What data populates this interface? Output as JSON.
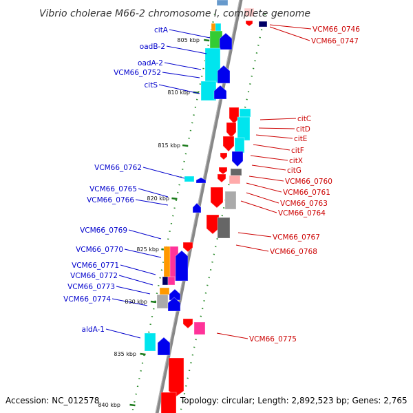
{
  "title": "Vibrio cholerae M66-2 chromosome I, complete genome",
  "footer": {
    "accession": "Accession: NC_012578",
    "topology": "Topology: circular; Length: 2,892,523 bp; Genes: 2,765"
  },
  "colors": {
    "left_label": "#0000cc",
    "right_label": "#cc0000",
    "backbone": "#888888",
    "dots": "#2a8a2a",
    "red": "#ff0000",
    "blue": "#0000ee",
    "cyan": "#00e5ee",
    "green": "#33cc33",
    "orange": "#ff9900",
    "pink": "#ff3399",
    "gray": "#aaaaaa",
    "darkgray": "#666666",
    "navy": "#000066"
  },
  "ticks": [
    {
      "label": "805 kbp"
    },
    {
      "label": "810 kbp"
    },
    {
      "label": "815 kbp"
    },
    {
      "label": "820 kbp"
    },
    {
      "label": "825 kbp"
    },
    {
      "label": "830 kbp"
    },
    {
      "label": "835 kbp"
    },
    {
      "label": "840 kbp"
    }
  ],
  "left_labels": [
    {
      "text": "citA"
    },
    {
      "text": "oadB-2"
    },
    {
      "text": "oadA-2"
    },
    {
      "text": "VCM66_0752"
    },
    {
      "text": "citS"
    },
    {
      "text": "VCM66_0762"
    },
    {
      "text": "VCM66_0765"
    },
    {
      "text": "VCM66_0766"
    },
    {
      "text": "VCM66_0769"
    },
    {
      "text": "VCM66_0770"
    },
    {
      "text": "VCM66_0771"
    },
    {
      "text": "VCM66_0772"
    },
    {
      "text": "VCM66_0773"
    },
    {
      "text": "VCM66_0774"
    },
    {
      "text": "aldA-1"
    }
  ],
  "right_labels": [
    {
      "text": "VCM66_0746"
    },
    {
      "text": "VCM66_0747"
    },
    {
      "text": "citC"
    },
    {
      "text": "citD"
    },
    {
      "text": "citE"
    },
    {
      "text": "citF"
    },
    {
      "text": "citX"
    },
    {
      "text": "citG"
    },
    {
      "text": "VCM66_0760"
    },
    {
      "text": "VCM66_0761"
    },
    {
      "text": "VCM66_0763"
    },
    {
      "text": "VCM66_0764"
    },
    {
      "text": "VCM66_0767"
    },
    {
      "text": "VCM66_0768"
    },
    {
      "text": "VCM66_0775"
    }
  ]
}
